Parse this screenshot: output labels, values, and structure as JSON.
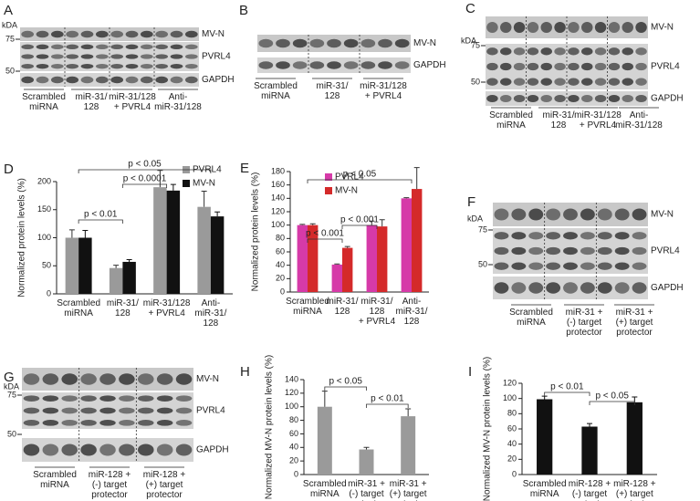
{
  "panels": [
    {
      "letter": "A",
      "kda": "kDA",
      "markers": [
        "75",
        "50"
      ],
      "bands": [
        "MV-N",
        "PVRL4",
        "GAPDH"
      ],
      "lanes": [
        "Scrambled\nmiRNA",
        "miR-31/\n128",
        "miR-31/128\n+ PVRL4",
        "Anti-\nmiR-31/128"
      ]
    },
    {
      "letter": "B",
      "bands": [
        "MV-N",
        "GAPDH"
      ],
      "lanes": [
        "Scrambled\nmiRNA",
        "miR-31/\n128",
        "miR-31/128\n+ PVRL4"
      ]
    },
    {
      "letter": "C",
      "kda": "kDA",
      "markers": [
        "75",
        "50"
      ],
      "bands": [
        "MV-N",
        "PVRL4",
        "GAPDH"
      ],
      "lanes": [
        "Scrambled\nmiRNA",
        "miR-31/\n128",
        "miR-31/128\n+ PVRL4",
        "Anti-\nmiR-31/128"
      ]
    },
    {
      "letter": "F",
      "kda": "kDA",
      "markers": [
        "75",
        "50"
      ],
      "bands": [
        "MV-N",
        "PVRL4",
        "GAPDH"
      ],
      "lanes": [
        "Scrambled\nmiRNA",
        "miR-31 +\n(-) target\nprotector",
        "miR-31 +\n(+) target\nprotector"
      ]
    },
    {
      "letter": "G",
      "kda": "kDA",
      "markers": [
        "75",
        "50"
      ],
      "bands": [
        "MV-N",
        "PVRL4",
        "GAPDH"
      ],
      "lanes": [
        "Scrambled\nmiRNA",
        "miR-128 +\n(-) target\nprotector",
        "miR-128 +\n(+) target\nprotector"
      ]
    }
  ],
  "chart_data": [
    {
      "type": "bar",
      "panel": "D",
      "ylabel": "Normalized protein levels (%)",
      "categories": [
        "Scrambled\nmiRNA",
        "miR-31/\n128",
        "miR-31/128\n+ PVRL4",
        "Anti-\nmiR-31/\n128"
      ],
      "series": [
        {
          "name": "PVRL4",
          "color": "#9a9a9a",
          "values": [
            100,
            46,
            190,
            155
          ],
          "errors": [
            14,
            5,
            30,
            28
          ]
        },
        {
          "name": "MV-N",
          "color": "#111111",
          "values": [
            100,
            57,
            184,
            138
          ],
          "errors": [
            13,
            4,
            11,
            8
          ]
        }
      ],
      "ylim": [
        0,
        200
      ],
      "yticks": [
        0,
        50,
        100,
        150,
        200
      ],
      "legend": "upper right",
      "annotations": [
        "p < 0.01",
        "p < 0.0001",
        "p < 0.05"
      ]
    },
    {
      "type": "bar",
      "panel": "E",
      "ylabel": "Normalized protein levels (%)",
      "categories": [
        "Scrambled\nmiRNA",
        "miR-31/\n128",
        "miR-31/\n128\n+ PVRL4",
        "Anti-\nmiR-31/\n128"
      ],
      "series": [
        {
          "name": "PVRL4",
          "color": "#d63aa8",
          "values": [
            100,
            41,
            100,
            140
          ],
          "errors": [
            1,
            1,
            6,
            1
          ]
        },
        {
          "name": "MV-N",
          "color": "#d42a2a",
          "values": [
            100,
            66,
            98,
            154
          ],
          "errors": [
            2,
            2,
            10,
            32
          ]
        }
      ],
      "ylim": [
        0,
        180
      ],
      "yticks": [
        0,
        20,
        40,
        60,
        80,
        100,
        120,
        140,
        160,
        180
      ],
      "legend": "upper left",
      "annotations": [
        "p < 0.001",
        "p < 0.001",
        "p < 0.05"
      ]
    },
    {
      "type": "bar",
      "panel": "H",
      "ylabel": "Normalized MV-N protein levels (%)",
      "categories": [
        "Scrambled\nmiRNA",
        "miR-31 +\n(-) target\nprotector",
        "miR-31 +\n(+) target\nprotector"
      ],
      "series": [
        {
          "name": "MV-N",
          "color": "#9a9a9a",
          "values": [
            100,
            37,
            86
          ],
          "errors": [
            23,
            3,
            11
          ]
        }
      ],
      "ylim": [
        0,
        140
      ],
      "yticks": [
        0,
        20,
        40,
        60,
        80,
        100,
        120,
        140
      ],
      "annotations": [
        "p < 0.05",
        "p < 0.01"
      ]
    },
    {
      "type": "bar",
      "panel": "I",
      "ylabel": "Normalized MV-N protein levels (%)",
      "categories": [
        "Scrambled\nmiRNA",
        "miR-128 +\n(-) target\nprotector",
        "miR-128 +\n(+) target\nprotector"
      ],
      "series": [
        {
          "name": "MV-N",
          "color": "#111111",
          "values": [
            99,
            63,
            95
          ],
          "errors": [
            4,
            4,
            7
          ]
        }
      ],
      "ylim": [
        0,
        120
      ],
      "yticks": [
        0,
        20,
        40,
        60,
        80,
        100,
        120
      ],
      "annotations": [
        "p < 0.01",
        "p < 0.05"
      ]
    }
  ]
}
